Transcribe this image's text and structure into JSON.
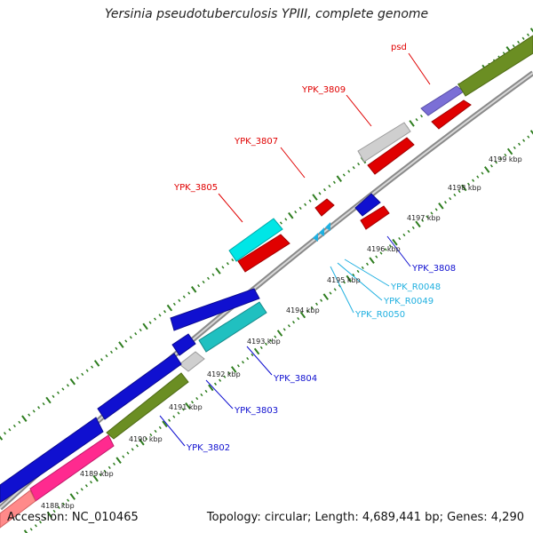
{
  "title": "Yersinia pseudotuberculosis YPIII, complete genome",
  "footer": {
    "accession": "Accession: NC_010465",
    "summary": "Topology: circular; Length: 4,689,441 bp; Genes: 4,290"
  },
  "colors": {
    "backbone": "#8a8a8a",
    "tick": "#2e7d1f",
    "forward_label": "#e00000",
    "reverse_label": "#1010d0",
    "rna_label": "#20b0e0"
  },
  "kbp_labels": [
    "4188 kbp",
    "4189 kbp",
    "4190 kbp",
    "4191 kbp",
    "4192 kbp",
    "4193 kbp",
    "4194 kbp",
    "4195 kbp",
    "4196 kbp",
    "4197 kbp",
    "4198 kbp",
    "4199 kbp"
  ],
  "forward_genes": [
    {
      "label": "psd",
      "color": "#e00000"
    },
    {
      "label": "YPK_3809",
      "color": "#e00000"
    },
    {
      "label": "YPK_3807",
      "color": "#e00000"
    },
    {
      "label": "YPK_3805",
      "color": "#e00000"
    }
  ],
  "reverse_genes": [
    {
      "label": "YPK_3808",
      "color": "#1010d0"
    },
    {
      "label": "YPK_3804",
      "color": "#1010d0"
    },
    {
      "label": "YPK_3803",
      "color": "#1010d0"
    },
    {
      "label": "YPK_3802",
      "color": "#1010d0"
    }
  ],
  "rna_genes": [
    {
      "label": "YPK_R0048",
      "color": "#20b0e0"
    },
    {
      "label": "YPK_R0049",
      "color": "#20b0e0"
    },
    {
      "label": "YPK_R0050",
      "color": "#20b0e0"
    }
  ]
}
